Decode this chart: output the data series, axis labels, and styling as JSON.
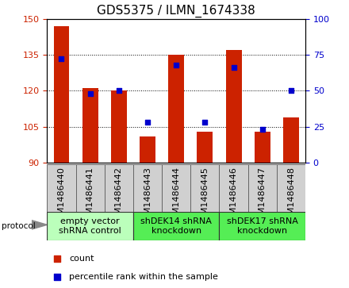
{
  "title": "GDS5375 / ILMN_1674338",
  "samples": [
    "GSM1486440",
    "GSM1486441",
    "GSM1486442",
    "GSM1486443",
    "GSM1486444",
    "GSM1486445",
    "GSM1486446",
    "GSM1486447",
    "GSM1486448"
  ],
  "counts": [
    147,
    121,
    120,
    101,
    135,
    103,
    137,
    103,
    109
  ],
  "percentiles": [
    72,
    48,
    50,
    28,
    68,
    28,
    66,
    23,
    50
  ],
  "ylim_left": [
    90,
    150
  ],
  "ylim_right": [
    0,
    100
  ],
  "yticks_left": [
    90,
    105,
    120,
    135,
    150
  ],
  "yticks_right": [
    0,
    25,
    50,
    75,
    100
  ],
  "bar_color": "#cc2200",
  "square_color": "#0000cc",
  "bar_width": 0.55,
  "groups": [
    {
      "label": "empty vector\nshRNA control",
      "start": 0,
      "end": 3,
      "color": "#bbffbb"
    },
    {
      "label": "shDEK14 shRNA\nknockdown",
      "start": 3,
      "end": 6,
      "color": "#55ee55"
    },
    {
      "label": "shDEK17 shRNA\nknockdown",
      "start": 6,
      "end": 9,
      "color": "#55ee55"
    }
  ],
  "protocol_label": "protocol",
  "legend_count_label": "count",
  "legend_percentile_label": "percentile rank within the sample",
  "title_fontsize": 11,
  "tick_fontsize": 8,
  "sample_fontsize": 8,
  "group_fontsize": 8,
  "legend_fontsize": 8,
  "sample_box_color": "#d0d0d0",
  "group_border_color": "#333333"
}
